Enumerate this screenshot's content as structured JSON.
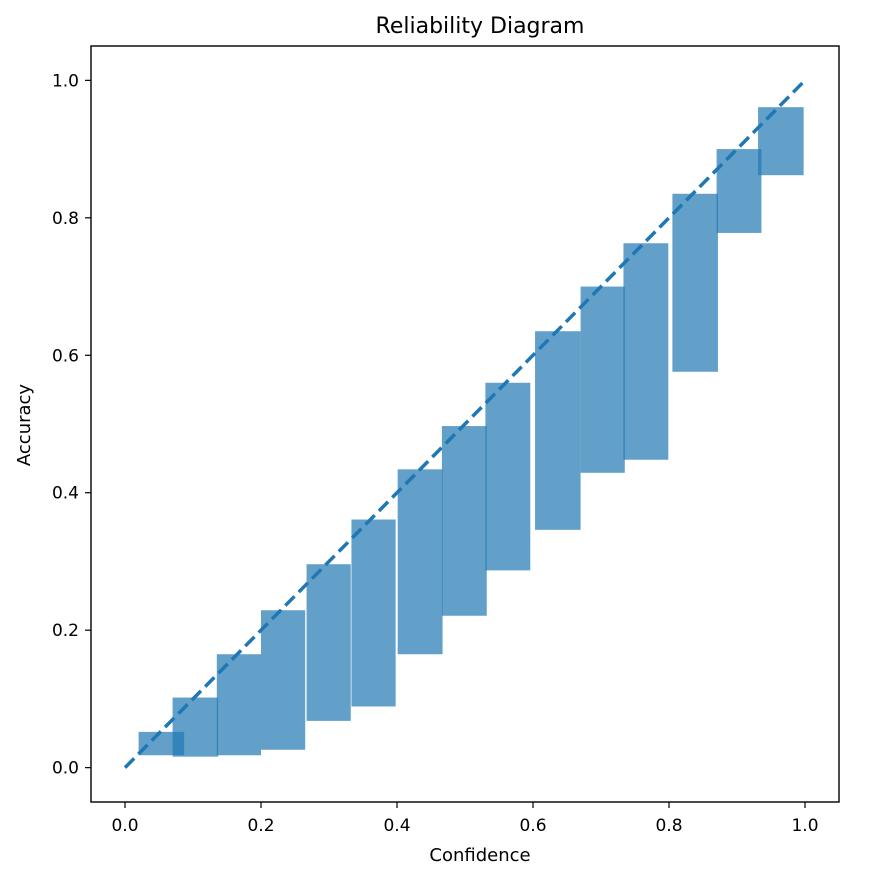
{
  "chart_data": {
    "type": "bar",
    "title": "Reliability Diagram",
    "xlabel": "Confidence",
    "ylabel": "Accuracy",
    "xlim": [
      -0.05,
      1.05
    ],
    "ylim": [
      -0.05,
      1.05
    ],
    "xticks": [
      "0.0",
      "0.2",
      "0.4",
      "0.6",
      "0.8",
      "1.0"
    ],
    "yticks": [
      "0.0",
      "0.2",
      "0.4",
      "0.6",
      "0.8",
      "1.0"
    ],
    "grid": false,
    "bar_color": "#1f77b4",
    "bar_opacity": 0.7,
    "diagonal": {
      "x": [
        0,
        1
      ],
      "y": [
        0,
        1
      ],
      "style": "dashed",
      "color": "#1f77b4"
    },
    "bars": [
      {
        "x0": 0.02,
        "x1": 0.087,
        "y0": 0.018,
        "y1": 0.052
      },
      {
        "x0": 0.07,
        "x1": 0.137,
        "y0": 0.016,
        "y1": 0.102
      },
      {
        "x0": 0.135,
        "x1": 0.2,
        "y0": 0.018,
        "y1": 0.165
      },
      {
        "x0": 0.2,
        "x1": 0.265,
        "y0": 0.026,
        "y1": 0.229
      },
      {
        "x0": 0.267,
        "x1": 0.332,
        "y0": 0.068,
        "y1": 0.296
      },
      {
        "x0": 0.333,
        "x1": 0.398,
        "y0": 0.089,
        "y1": 0.361
      },
      {
        "x0": 0.401,
        "x1": 0.467,
        "y0": 0.165,
        "y1": 0.434
      },
      {
        "x0": 0.466,
        "x1": 0.532,
        "y0": 0.221,
        "y1": 0.497
      },
      {
        "x0": 0.53,
        "x1": 0.596,
        "y0": 0.287,
        "y1": 0.56
      },
      {
        "x0": 0.603,
        "x1": 0.67,
        "y0": 0.346,
        "y1": 0.635
      },
      {
        "x0": 0.67,
        "x1": 0.735,
        "y0": 0.429,
        "y1": 0.7
      },
      {
        "x0": 0.733,
        "x1": 0.799,
        "y0": 0.448,
        "y1": 0.763
      },
      {
        "x0": 0.805,
        "x1": 0.872,
        "y0": 0.576,
        "y1": 0.835
      },
      {
        "x0": 0.87,
        "x1": 0.936,
        "y0": 0.778,
        "y1": 0.9
      },
      {
        "x0": 0.931,
        "x1": 0.998,
        "y0": 0.862,
        "y1": 0.961
      }
    ]
  }
}
